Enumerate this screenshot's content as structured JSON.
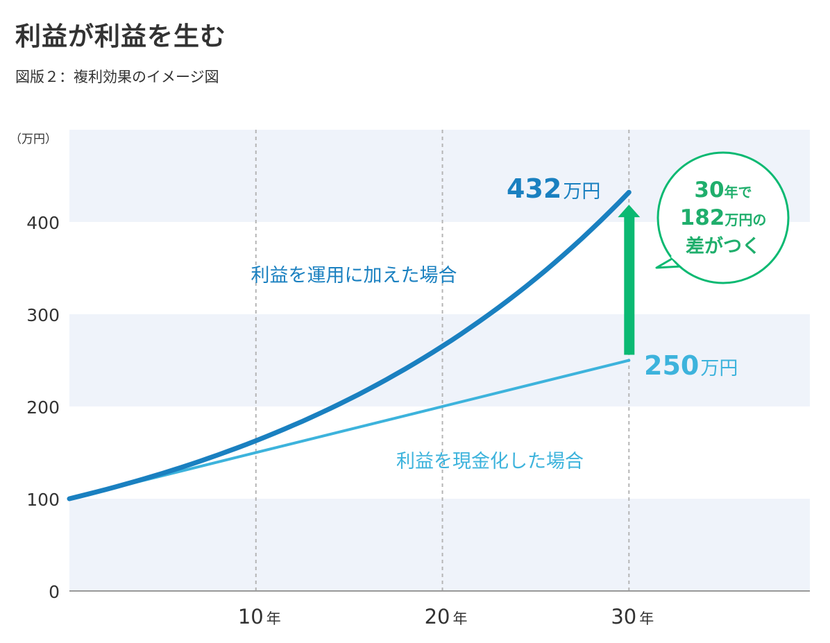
{
  "header": {
    "title": "利益が利益を生む",
    "subtitle": "図版２：複利効果のイメージ図"
  },
  "colors": {
    "compound": "#1a80c0",
    "simple": "#3db3dc",
    "arrow": "#0bb972",
    "band": "#eff3fa",
    "grid": "#b5b5b5",
    "axis": "#999999"
  },
  "chart_data": {
    "type": "line",
    "y_unit": "（万円）",
    "ylim": [
      0,
      500
    ],
    "xlim": [
      0,
      39.7
    ],
    "y_ticks": [
      "0",
      "100",
      "200",
      "300",
      "400"
    ],
    "x_ticks": [
      {
        "value": 10,
        "num": "10",
        "unit": "年"
      },
      {
        "value": 20,
        "num": "20",
        "unit": "年"
      },
      {
        "value": 30,
        "num": "30",
        "unit": "年"
      }
    ],
    "grid": "vertical-dashed",
    "series": [
      {
        "name": "利益を運用に加えた場合",
        "kind": "compound",
        "x": [
          0,
          5,
          10,
          15,
          20,
          25,
          30
        ],
        "values": [
          100,
          127.6,
          162.9,
          207.9,
          265.3,
          338.6,
          432.2
        ],
        "end_value": "432",
        "end_unit": "万円"
      },
      {
        "name": "利益を現金化した場合",
        "kind": "simple",
        "x": [
          0,
          30
        ],
        "values": [
          100,
          250
        ],
        "end_value": "250",
        "end_unit": "万円"
      }
    ],
    "callout": {
      "line1_num": "30",
      "line1_unit": "年で",
      "line2_num": "182",
      "line2_unit": "万円の",
      "line3": "差がつく"
    }
  }
}
